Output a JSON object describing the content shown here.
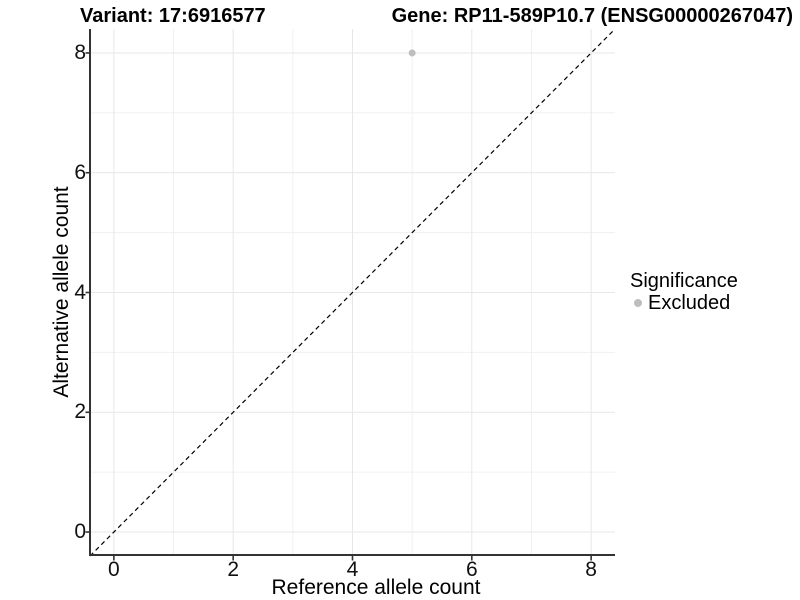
{
  "chart_data": {
    "type": "scatter",
    "title_left": "Variant: 17:6916577",
    "title_right": "Gene: RP11-589P10.7 (ENSG00000267047)",
    "xlabel": "Reference allele count",
    "ylabel": "Alternative allele count",
    "xlim": [
      -0.4,
      8.4
    ],
    "ylim": [
      -0.4,
      8.4
    ],
    "xticks": [
      0,
      2,
      4,
      6,
      8
    ],
    "yticks": [
      0,
      2,
      4,
      6,
      8
    ],
    "minor_gridlines_x": [
      1,
      3,
      5,
      7
    ],
    "minor_gridlines_y": [
      1,
      3,
      5,
      7
    ],
    "grid": "major+minor",
    "legend_position": "right",
    "series": [
      {
        "name": "Excluded",
        "color": "#bebebe",
        "points": [
          {
            "x": 5,
            "y": 8
          }
        ]
      }
    ],
    "reference_line": {
      "slope": 1,
      "intercept": 0,
      "style": "dashed",
      "color": "#000000"
    }
  },
  "legend": {
    "title": "Significance",
    "items": [
      {
        "label": "Excluded",
        "color": "#bebebe"
      }
    ]
  },
  "colors": {
    "background": "#ffffff",
    "grid_major": "#e7e7e7",
    "grid_minor": "#f0f0f0",
    "axis_line": "#333333",
    "tick_text": "#111111",
    "point": "#bebebe"
  }
}
